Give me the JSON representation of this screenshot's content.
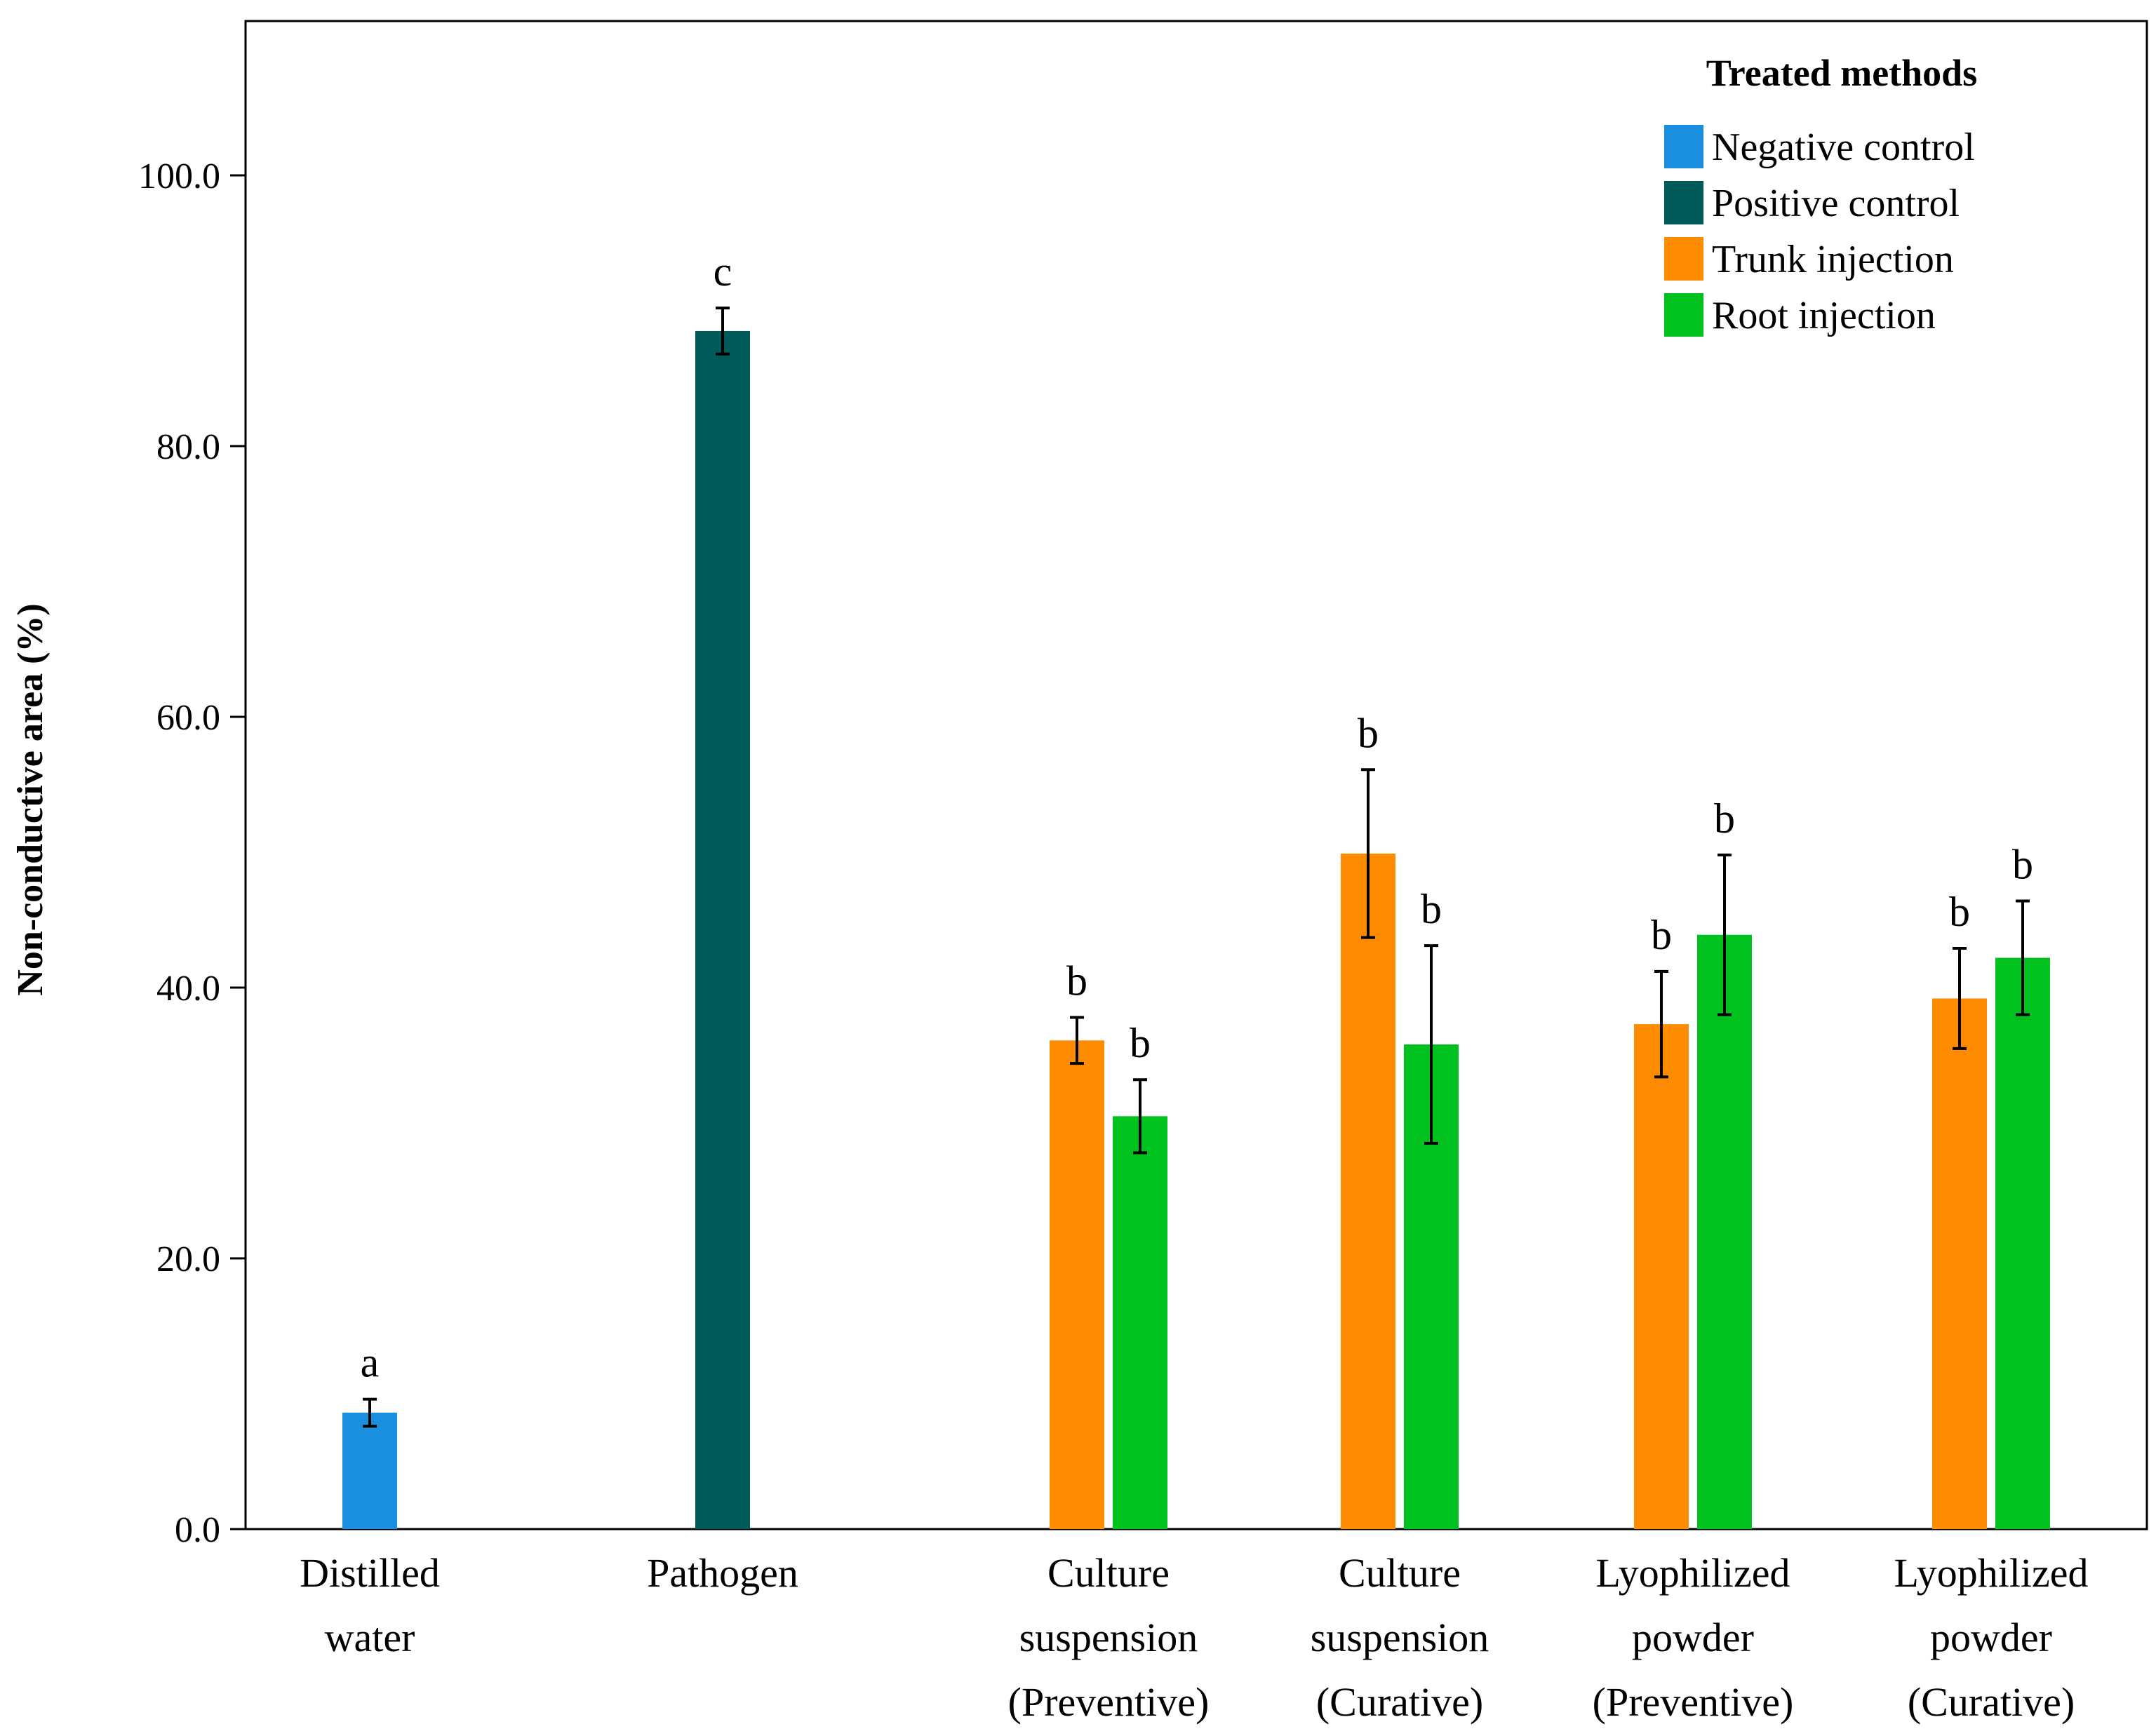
{
  "chart_data": {
    "type": "bar",
    "title": "",
    "xlabel": "",
    "ylabel": "Non-conductive area (%)",
    "ylim": [
      0,
      110
    ],
    "yticks": [
      "0.0",
      "20.0",
      "40.0",
      "60.0",
      "80.0",
      "100.0"
    ],
    "ytick_values": [
      0,
      20,
      40,
      60,
      80,
      100
    ],
    "grid": false,
    "legend": {
      "title": "Treated methods",
      "position": "top-right",
      "entries": [
        {
          "key": "negative",
          "label": "Negative control",
          "color": "#1a8fe0"
        },
        {
          "key": "positive",
          "label": "Positive control",
          "color": "#005a5a"
        },
        {
          "key": "trunk",
          "label": "Trunk injection",
          "color": "#ff8c00"
        },
        {
          "key": "root",
          "label": "Root injection",
          "color": "#00c21f"
        }
      ]
    },
    "categories": [
      {
        "label_lines": [
          "Distilled",
          "water"
        ],
        "bars": [
          {
            "series": "negative",
            "value": 8.6,
            "err_low": 7.6,
            "err_high": 9.6,
            "sig": "a"
          }
        ]
      },
      {
        "label_lines": [
          "Pathogen"
        ],
        "bars": [
          {
            "series": "positive",
            "value": 88.5,
            "err_low": 86.8,
            "err_high": 90.2,
            "sig": "c"
          }
        ]
      },
      {
        "label_lines": [
          "Culture",
          "suspension",
          "(Preventive)"
        ],
        "bars": [
          {
            "series": "trunk",
            "value": 36.1,
            "err_low": 34.4,
            "err_high": 37.8,
            "sig": "b"
          },
          {
            "series": "root",
            "value": 30.5,
            "err_low": 27.8,
            "err_high": 33.2,
            "sig": "b"
          }
        ]
      },
      {
        "label_lines": [
          "Culture",
          "suspension",
          "(Curative)"
        ],
        "bars": [
          {
            "series": "trunk",
            "value": 49.9,
            "err_low": 43.7,
            "err_high": 56.1,
            "sig": "b"
          },
          {
            "series": "root",
            "value": 35.8,
            "err_low": 28.5,
            "err_high": 43.1,
            "sig": "b"
          }
        ]
      },
      {
        "label_lines": [
          "Lyophilized",
          "powder",
          "(Preventive)"
        ],
        "bars": [
          {
            "series": "trunk",
            "value": 37.3,
            "err_low": 33.4,
            "err_high": 41.2,
            "sig": "b"
          },
          {
            "series": "root",
            "value": 43.9,
            "err_low": 38.0,
            "err_high": 49.8,
            "sig": "b"
          }
        ]
      },
      {
        "label_lines": [
          "Lyophilized",
          "powder",
          "(Curative)"
        ],
        "bars": [
          {
            "series": "trunk",
            "value": 39.2,
            "err_low": 35.5,
            "err_high": 42.9,
            "sig": "b"
          },
          {
            "series": "root",
            "value": 42.2,
            "err_low": 38.0,
            "err_high": 46.4,
            "sig": "b"
          }
        ]
      }
    ]
  }
}
